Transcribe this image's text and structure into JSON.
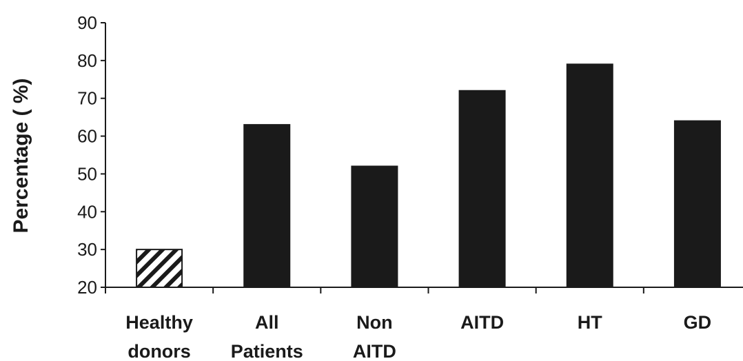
{
  "chart_data": {
    "type": "bar",
    "categories": [
      [
        "Healthy",
        "donors"
      ],
      [
        "All",
        "Patients"
      ],
      [
        "Non",
        "AITD"
      ],
      [
        "AITD"
      ],
      [
        "HT"
      ],
      [
        "GD"
      ]
    ],
    "values": [
      30,
      63,
      52,
      72,
      79,
      64
    ],
    "bar_fill": [
      "hatched",
      "solid",
      "solid",
      "solid",
      "solid",
      "solid"
    ],
    "bar_color": "#1a1a1a",
    "ylabel": "Percentage ( %)",
    "xlabel": "",
    "ylim": [
      20,
      90
    ],
    "yticks": [
      20,
      30,
      40,
      50,
      60,
      70,
      80,
      90
    ],
    "grid": false,
    "legend": "none"
  }
}
